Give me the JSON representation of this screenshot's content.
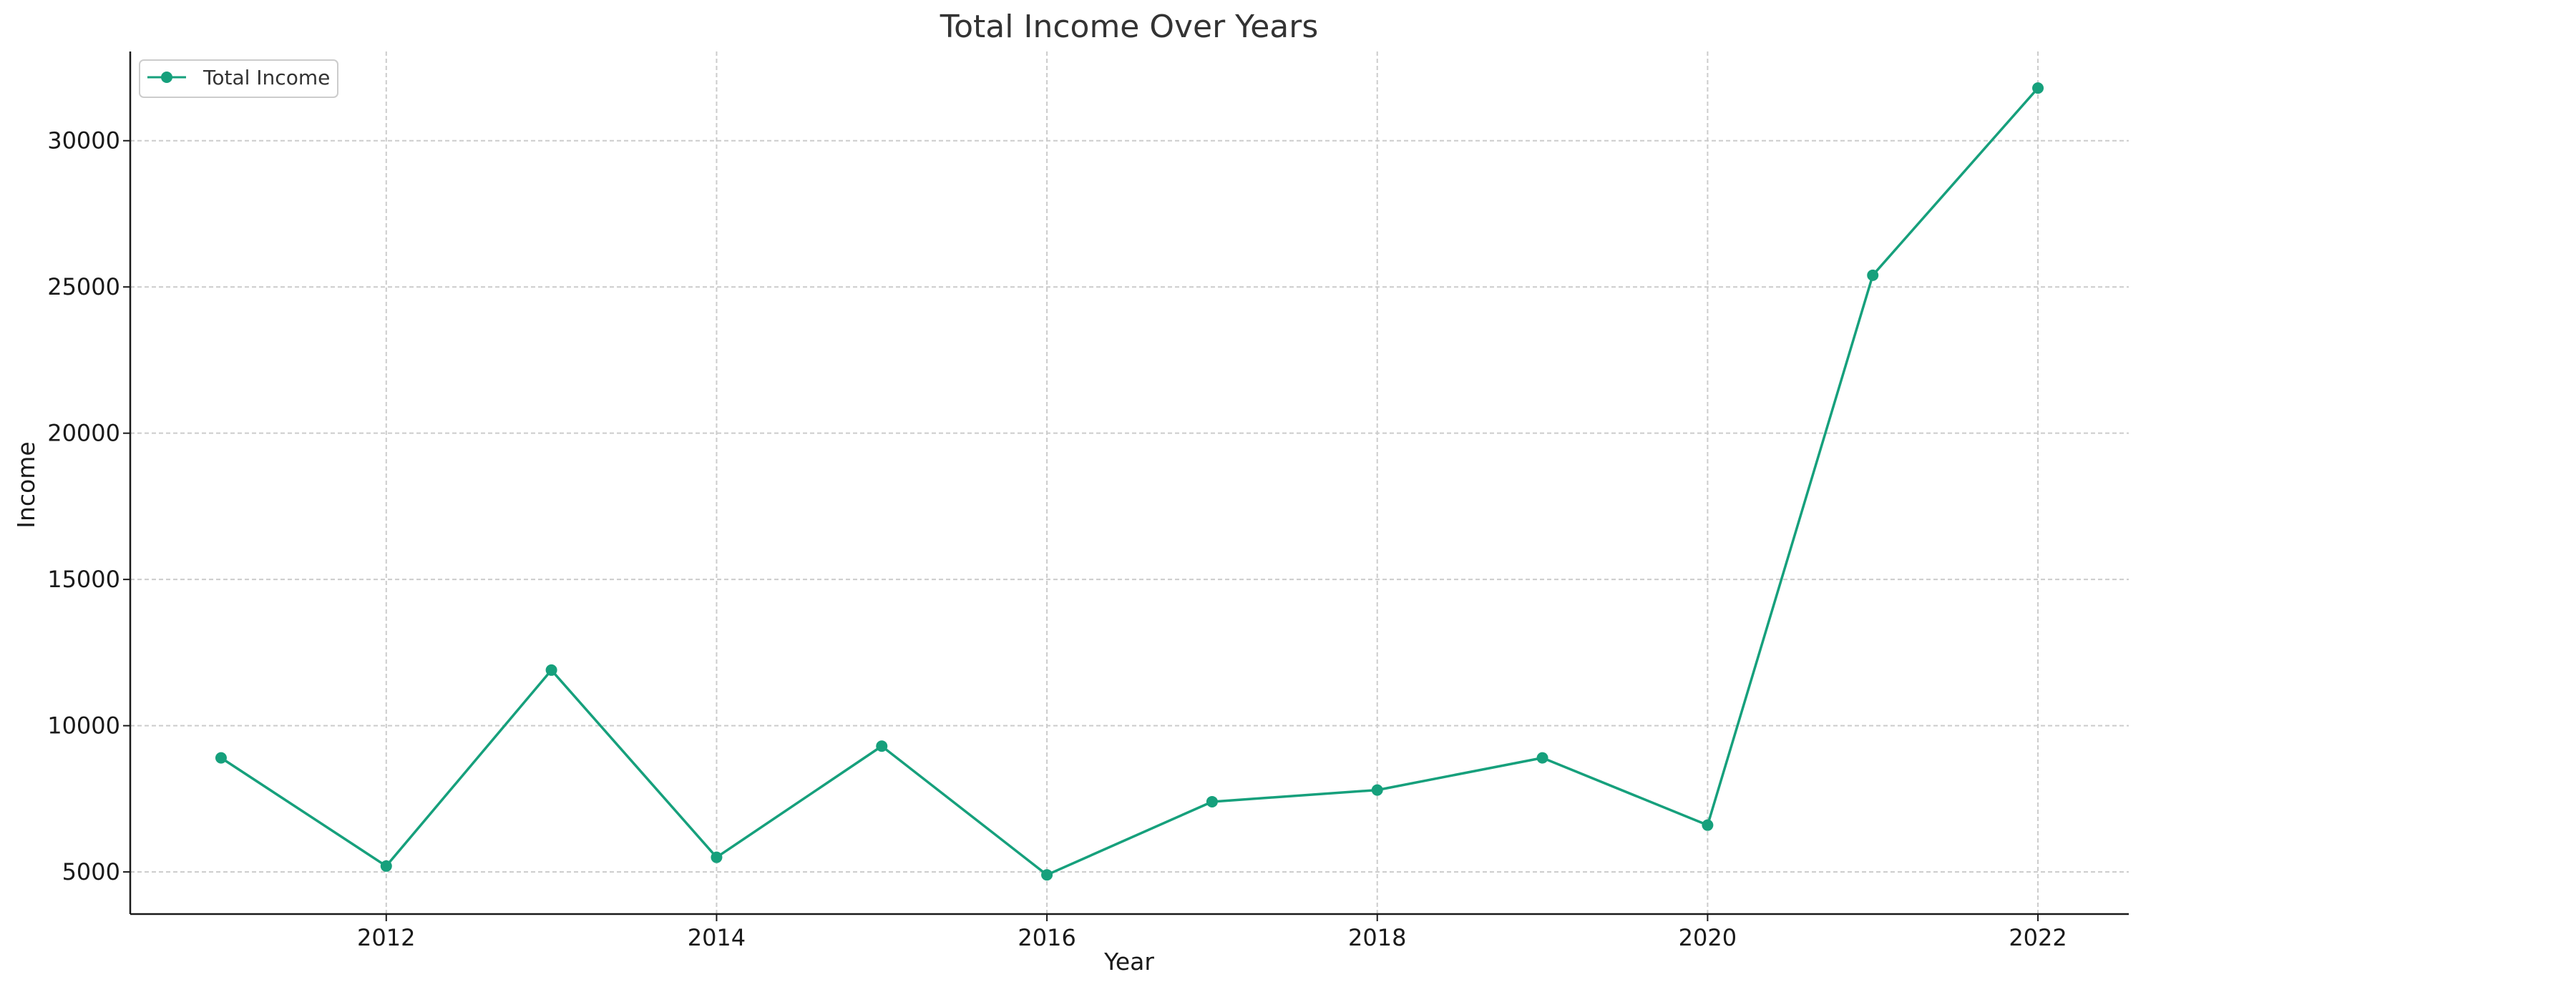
{
  "chart_data": {
    "type": "line",
    "title": "Total Income Over Years",
    "xlabel": "Year",
    "ylabel": "Income",
    "x": [
      2011,
      2012,
      2013,
      2014,
      2015,
      2016,
      2017,
      2018,
      2019,
      2020,
      2021,
      2022
    ],
    "series": [
      {
        "name": "Total Income",
        "color": "#16a07c",
        "values": [
          8900,
          5200,
          11900,
          5500,
          9300,
          4900,
          7400,
          7800,
          8900,
          6600,
          25400,
          31800
        ]
      }
    ],
    "xticks": [
      2012,
      2014,
      2016,
      2018,
      2020,
      2022
    ],
    "yticks": [
      5000,
      10000,
      15000,
      20000,
      25000,
      30000
    ],
    "xlim": [
      2010.45,
      2022.55
    ],
    "ylim": [
      3560,
      33050
    ],
    "grid": true,
    "legend_position": "top-left"
  }
}
